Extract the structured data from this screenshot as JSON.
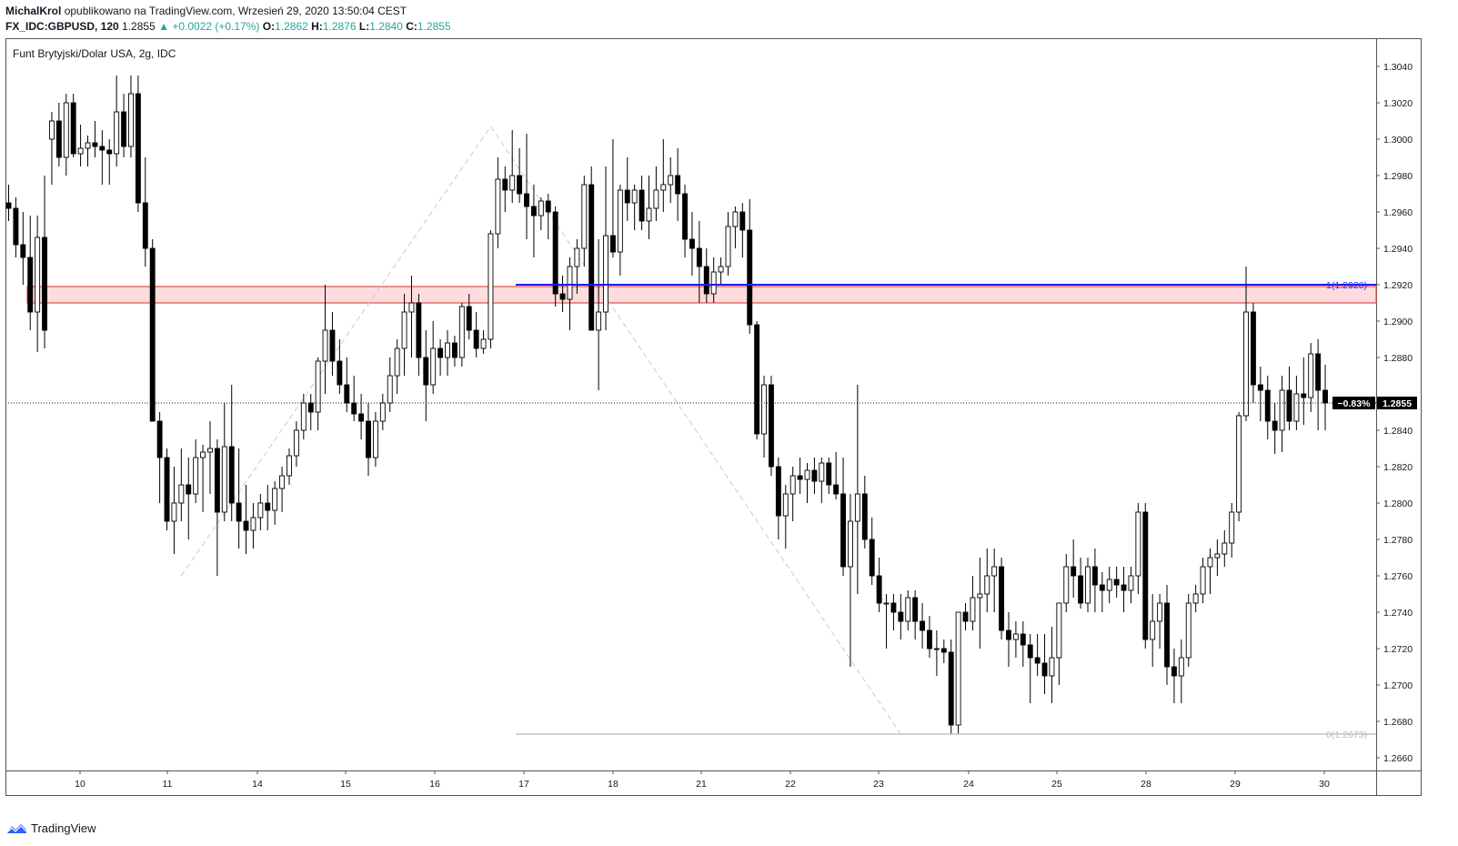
{
  "header": {
    "author": "MichalKrol",
    "published": "opublikowano na TradingView.com, Wrzesień 29, 2020 13:50:04 CEST",
    "symbol": "FX_IDC:GBPUSD, 120",
    "last": "1.2855",
    "change_arrow": "▲",
    "change": "+0.0022 (+0.17%)",
    "o_label": "O:",
    "o": "1.2862",
    "h_label": "H:",
    "h": "1.2876",
    "l_label": "L:",
    "l": "1.2840",
    "c_label": "C:",
    "c": "1.2855"
  },
  "footer": {
    "brand": "TradingView"
  },
  "colors": {
    "bull_fill": "#ffffff",
    "bear_fill": "#000000",
    "zone_fill": "#fcdcdc",
    "zone_border": "#e05050",
    "fib_high": "#1a1aff",
    "fib_low": "#c0c3cc",
    "price_tag": "#000000"
  },
  "chart_data": {
    "type": "candlestick",
    "title": "Funt Brytyjski/Dolar USA, 2g, IDC",
    "ylim": [
      1.265,
      1.3055
    ],
    "y_ticks": [
      "1.3040",
      "1.3020",
      "1.3000",
      "1.2980",
      "1.2960",
      "1.2940",
      "1.2920",
      "1.2900",
      "1.2880",
      "1.2860",
      "1.2840",
      "1.2820",
      "1.2800",
      "1.2780",
      "1.2760",
      "1.2740",
      "1.2720",
      "1.2700",
      "1.2680",
      "1.2660"
    ],
    "x_ticks": [
      "10",
      "11",
      "14",
      "15",
      "16",
      "17",
      "18",
      "21",
      "22",
      "23",
      "24",
      "25",
      "28",
      "29",
      "30"
    ],
    "last_price": {
      "value": 1.2855,
      "label": "1.2855",
      "change_label": "−0.83%"
    },
    "resistance_zone": {
      "low": 1.291,
      "high": 1.2919
    },
    "fib_levels": [
      {
        "label": "1(1.2920)",
        "value": 1.292
      },
      {
        "label": "0(1.2673)",
        "value": 1.2673
      }
    ],
    "zigzag": [
      {
        "bar": 24,
        "price": 1.276
      },
      {
        "bar": 67,
        "price": 1.3007
      },
      {
        "bar": 124,
        "price": 1.2673
      }
    ],
    "candles": [
      [
        1.2965,
        1.2975,
        1.2955,
        1.2962
      ],
      [
        1.2962,
        1.2968,
        1.2935,
        1.2942
      ],
      [
        1.2942,
        1.296,
        1.292,
        1.2935
      ],
      [
        1.2935,
        1.2958,
        1.2895,
        1.2905
      ],
      [
        1.2905,
        1.2958,
        1.2883,
        1.2946
      ],
      [
        1.2946,
        1.298,
        1.2885,
        1.2895
      ],
      [
        1.3,
        1.3015,
        1.2975,
        1.301
      ],
      [
        1.301,
        1.302,
        1.2985,
        1.299
      ],
      [
        1.299,
        1.3025,
        1.298,
        1.302
      ],
      [
        1.302,
        1.3025,
        1.299,
        1.2992
      ],
      [
        1.2992,
        1.3008,
        1.2985,
        1.2995
      ],
      [
        1.2995,
        1.3002,
        1.2985,
        1.2998
      ],
      [
        1.2998,
        1.301,
        1.299,
        1.2996
      ],
      [
        1.2996,
        1.3005,
        1.2975,
        1.2994
      ],
      [
        1.2994,
        1.3,
        1.2975,
        1.2992
      ],
      [
        1.2992,
        1.3035,
        1.2985,
        1.3015
      ],
      [
        1.3015,
        1.3025,
        1.299,
        1.2996
      ],
      [
        1.2996,
        1.3035,
        1.299,
        1.3025
      ],
      [
        1.3025,
        1.3035,
        1.296,
        1.2965
      ],
      [
        1.2965,
        1.299,
        1.293,
        1.294
      ],
      [
        1.294,
        1.2945,
        1.2845,
        1.2845
      ],
      [
        1.2845,
        1.285,
        1.28,
        1.2825
      ],
      [
        1.2825,
        1.283,
        1.2785,
        1.279
      ],
      [
        1.279,
        1.282,
        1.2772,
        1.28
      ],
      [
        1.28,
        1.283,
        1.279,
        1.281
      ],
      [
        1.281,
        1.2825,
        1.278,
        1.2805
      ],
      [
        1.2805,
        1.2835,
        1.28,
        1.2825
      ],
      [
        1.2825,
        1.2832,
        1.2795,
        1.2828
      ],
      [
        1.2828,
        1.2845,
        1.2805,
        1.283
      ],
      [
        1.283,
        1.2835,
        1.276,
        1.2795
      ],
      [
        1.2795,
        1.2855,
        1.279,
        1.2831
      ],
      [
        1.2831,
        1.2865,
        1.279,
        1.28
      ],
      [
        1.28,
        1.283,
        1.2775,
        1.279
      ],
      [
        1.279,
        1.281,
        1.2772,
        1.2785
      ],
      [
        1.2785,
        1.28,
        1.2775,
        1.2792
      ],
      [
        1.2792,
        1.2805,
        1.2785,
        1.28
      ],
      [
        1.28,
        1.281,
        1.2785,
        1.2796
      ],
      [
        1.2796,
        1.2812,
        1.2788,
        1.2808
      ],
      [
        1.2808,
        1.282,
        1.2795,
        1.2815
      ],
      [
        1.2815,
        1.283,
        1.281,
        1.2826
      ],
      [
        1.2826,
        1.2845,
        1.282,
        1.284
      ],
      [
        1.284,
        1.286,
        1.2835,
        1.2855
      ],
      [
        1.2855,
        1.286,
        1.284,
        1.285
      ],
      [
        1.285,
        1.288,
        1.284,
        1.2878
      ],
      [
        1.2878,
        1.292,
        1.286,
        1.2895
      ],
      [
        1.2895,
        1.2905,
        1.287,
        1.2878
      ],
      [
        1.2878,
        1.289,
        1.286,
        1.2865
      ],
      [
        1.2865,
        1.288,
        1.285,
        1.2855
      ],
      [
        1.2855,
        1.287,
        1.2845,
        1.2849
      ],
      [
        1.2849,
        1.286,
        1.2835,
        1.2845
      ],
      [
        1.2845,
        1.2855,
        1.2815,
        1.2825
      ],
      [
        1.2825,
        1.285,
        1.282,
        1.2845
      ],
      [
        1.2845,
        1.286,
        1.284,
        1.2855
      ],
      [
        1.2855,
        1.288,
        1.285,
        1.287
      ],
      [
        1.287,
        1.289,
        1.286,
        1.2885
      ],
      [
        1.2885,
        1.2915,
        1.287,
        1.2905
      ],
      [
        1.2905,
        1.2925,
        1.288,
        1.291
      ],
      [
        1.291,
        1.2915,
        1.287,
        1.288
      ],
      [
        1.288,
        1.2895,
        1.2845,
        1.2865
      ],
      [
        1.2865,
        1.29,
        1.286,
        1.2885
      ],
      [
        1.2885,
        1.289,
        1.287,
        1.288
      ],
      [
        1.288,
        1.2895,
        1.287,
        1.2888
      ],
      [
        1.2888,
        1.2892,
        1.2875,
        1.288
      ],
      [
        1.288,
        1.291,
        1.2875,
        1.2908
      ],
      [
        1.2908,
        1.2915,
        1.289,
        1.2895
      ],
      [
        1.2895,
        1.2905,
        1.288,
        1.2885
      ],
      [
        1.2885,
        1.2895,
        1.2882,
        1.289
      ],
      [
        1.289,
        1.295,
        1.2885,
        1.2948
      ],
      [
        1.2948,
        1.299,
        1.294,
        1.2978
      ],
      [
        1.2978,
        1.2985,
        1.296,
        1.2972
      ],
      [
        1.2972,
        1.3005,
        1.2965,
        1.298
      ],
      [
        1.298,
        1.2995,
        1.2965,
        1.297
      ],
      [
        1.297,
        1.3003,
        1.2945,
        1.2963
      ],
      [
        1.2963,
        1.2975,
        1.2935,
        1.2958
      ],
      [
        1.2958,
        1.2968,
        1.295,
        1.2966
      ],
      [
        1.2966,
        1.297,
        1.2945,
        1.296
      ],
      [
        1.296,
        1.2963,
        1.2908,
        1.2915
      ],
      [
        1.2915,
        1.2925,
        1.2905,
        1.2912
      ],
      [
        1.2912,
        1.2935,
        1.2895,
        1.293
      ],
      [
        1.293,
        1.2945,
        1.2915,
        1.294
      ],
      [
        1.294,
        1.298,
        1.293,
        1.2975
      ],
      [
        1.2975,
        1.2985,
        1.2895,
        1.2895
      ],
      [
        1.2895,
        1.2945,
        1.2862,
        1.2905
      ],
      [
        1.2905,
        1.2985,
        1.2895,
        1.2947
      ],
      [
        1.2947,
        1.3,
        1.2935,
        1.2938
      ],
      [
        1.2938,
        1.2975,
        1.2925,
        1.2972
      ],
      [
        1.2972,
        1.299,
        1.2955,
        1.2965
      ],
      [
        1.2965,
        1.2975,
        1.295,
        1.2972
      ],
      [
        1.2972,
        1.298,
        1.295,
        1.2955
      ],
      [
        1.2955,
        1.298,
        1.2945,
        1.2962
      ],
      [
        1.2962,
        1.2985,
        1.2955,
        1.2972
      ],
      [
        1.2972,
        1.3,
        1.296,
        1.2975
      ],
      [
        1.2975,
        1.299,
        1.2965,
        1.298
      ],
      [
        1.298,
        1.2995,
        1.2955,
        1.297
      ],
      [
        1.297,
        1.2975,
        1.2935,
        1.2945
      ],
      [
        1.2945,
        1.296,
        1.2925,
        1.294
      ],
      [
        1.294,
        1.2955,
        1.291,
        1.293
      ],
      [
        1.293,
        1.294,
        1.291,
        1.2915
      ],
      [
        1.2915,
        1.2935,
        1.291,
        1.2927
      ],
      [
        1.2927,
        1.2935,
        1.292,
        1.293
      ],
      [
        1.293,
        1.296,
        1.2925,
        1.2952
      ],
      [
        1.2952,
        1.2963,
        1.294,
        1.296
      ],
      [
        1.296,
        1.2965,
        1.2935,
        1.295
      ],
      [
        1.295,
        1.2967,
        1.2893,
        1.2898
      ],
      [
        1.2898,
        1.29,
        1.2835,
        1.2838
      ],
      [
        1.2838,
        1.287,
        1.2825,
        1.2865
      ],
      [
        1.2865,
        1.287,
        1.2815,
        1.282
      ],
      [
        1.282,
        1.2825,
        1.278,
        1.2793
      ],
      [
        1.2793,
        1.281,
        1.2775,
        1.2805
      ],
      [
        1.2805,
        1.282,
        1.279,
        1.2815
      ],
      [
        1.2815,
        1.2825,
        1.2805,
        1.2813
      ],
      [
        1.2813,
        1.2822,
        1.28,
        1.2818
      ],
      [
        1.2818,
        1.2825,
        1.2805,
        1.2812
      ],
      [
        1.2812,
        1.2825,
        1.28,
        1.2822
      ],
      [
        1.2822,
        1.2825,
        1.2805,
        1.281
      ],
      [
        1.281,
        1.2828,
        1.2802,
        1.2805
      ],
      [
        1.2805,
        1.2825,
        1.276,
        1.2765
      ],
      [
        1.2765,
        1.2805,
        1.271,
        1.279
      ],
      [
        1.279,
        1.2865,
        1.275,
        1.2805
      ],
      [
        1.2805,
        1.2815,
        1.2775,
        1.278
      ],
      [
        1.278,
        1.2792,
        1.2755,
        1.276
      ],
      [
        1.276,
        1.277,
        1.274,
        1.2745
      ],
      [
        1.2745,
        1.275,
        1.272,
        1.2745
      ],
      [
        1.2745,
        1.275,
        1.273,
        1.274
      ],
      [
        1.274,
        1.275,
        1.2725,
        1.2735
      ],
      [
        1.2735,
        1.2752,
        1.273,
        1.2748
      ],
      [
        1.2748,
        1.2752,
        1.2725,
        1.2735
      ],
      [
        1.2735,
        1.2745,
        1.272,
        1.273
      ],
      [
        1.273,
        1.2738,
        1.2715,
        1.272
      ],
      [
        1.272,
        1.273,
        1.2705,
        1.272
      ],
      [
        1.272,
        1.2725,
        1.2712,
        1.2718
      ],
      [
        1.2718,
        1.2725,
        1.2673,
        1.2678
      ],
      [
        1.2678,
        1.274,
        1.2673,
        1.274
      ],
      [
        1.274,
        1.2745,
        1.273,
        1.2735
      ],
      [
        1.2735,
        1.276,
        1.273,
        1.2748
      ],
      [
        1.2748,
        1.277,
        1.272,
        1.275
      ],
      [
        1.275,
        1.2775,
        1.274,
        1.276
      ],
      [
        1.276,
        1.2775,
        1.274,
        1.2765
      ],
      [
        1.2765,
        1.277,
        1.2725,
        1.273
      ],
      [
        1.273,
        1.274,
        1.271,
        1.2725
      ],
      [
        1.2725,
        1.2735,
        1.2715,
        1.2728
      ],
      [
        1.2728,
        1.2735,
        1.271,
        1.2722
      ],
      [
        1.2722,
        1.2728,
        1.269,
        1.2715
      ],
      [
        1.2715,
        1.2728,
        1.2705,
        1.2712
      ],
      [
        1.2712,
        1.2728,
        1.2695,
        1.2705
      ],
      [
        1.2705,
        1.2732,
        1.269,
        1.2715
      ],
      [
        1.2715,
        1.2745,
        1.27,
        1.2745
      ],
      [
        1.2745,
        1.2772,
        1.274,
        1.2765
      ],
      [
        1.2765,
        1.278,
        1.2748,
        1.276
      ],
      [
        1.276,
        1.277,
        1.2742,
        1.2745
      ],
      [
        1.2745,
        1.277,
        1.274,
        1.2765
      ],
      [
        1.2765,
        1.2775,
        1.274,
        1.2755
      ],
      [
        1.2755,
        1.2762,
        1.274,
        1.2752
      ],
      [
        1.2752,
        1.2765,
        1.2745,
        1.2758
      ],
      [
        1.2758,
        1.2765,
        1.2748,
        1.2755
      ],
      [
        1.2755,
        1.2765,
        1.274,
        1.2752
      ],
      [
        1.2752,
        1.2765,
        1.2745,
        1.276
      ],
      [
        1.276,
        1.28,
        1.275,
        1.2795
      ],
      [
        1.2795,
        1.28,
        1.272,
        1.2725
      ],
      [
        1.2725,
        1.275,
        1.271,
        1.2735
      ],
      [
        1.2735,
        1.275,
        1.272,
        1.2745
      ],
      [
        1.2745,
        1.2755,
        1.27,
        1.271
      ],
      [
        1.271,
        1.272,
        1.269,
        1.2705
      ],
      [
        1.2705,
        1.2725,
        1.269,
        1.2715
      ],
      [
        1.2715,
        1.275,
        1.271,
        1.2745
      ],
      [
        1.2745,
        1.2755,
        1.274,
        1.275
      ],
      [
        1.275,
        1.277,
        1.2745,
        1.2765
      ],
      [
        1.2765,
        1.2775,
        1.275,
        1.277
      ],
      [
        1.277,
        1.278,
        1.276,
        1.2772
      ],
      [
        1.2772,
        1.2785,
        1.2765,
        1.2778
      ],
      [
        1.2778,
        1.28,
        1.277,
        1.2795
      ],
      [
        1.2795,
        1.285,
        1.279,
        1.2848
      ],
      [
        1.2848,
        1.293,
        1.2845,
        1.2905
      ],
      [
        1.2905,
        1.291,
        1.2855,
        1.2865
      ],
      [
        1.2865,
        1.2875,
        1.2845,
        1.2862
      ],
      [
        1.2862,
        1.287,
        1.2835,
        1.2845
      ],
      [
        1.2845,
        1.2855,
        1.2827,
        1.284
      ],
      [
        1.284,
        1.287,
        1.2828,
        1.2862
      ],
      [
        1.2862,
        1.2875,
        1.284,
        1.2845
      ],
      [
        1.2845,
        1.287,
        1.284,
        1.286
      ],
      [
        1.286,
        1.288,
        1.2843,
        1.2858
      ],
      [
        1.2858,
        1.2888,
        1.285,
        1.2882
      ],
      [
        1.2882,
        1.289,
        1.284,
        1.2862
      ],
      [
        1.2862,
        1.2876,
        1.284,
        1.2855
      ]
    ]
  }
}
